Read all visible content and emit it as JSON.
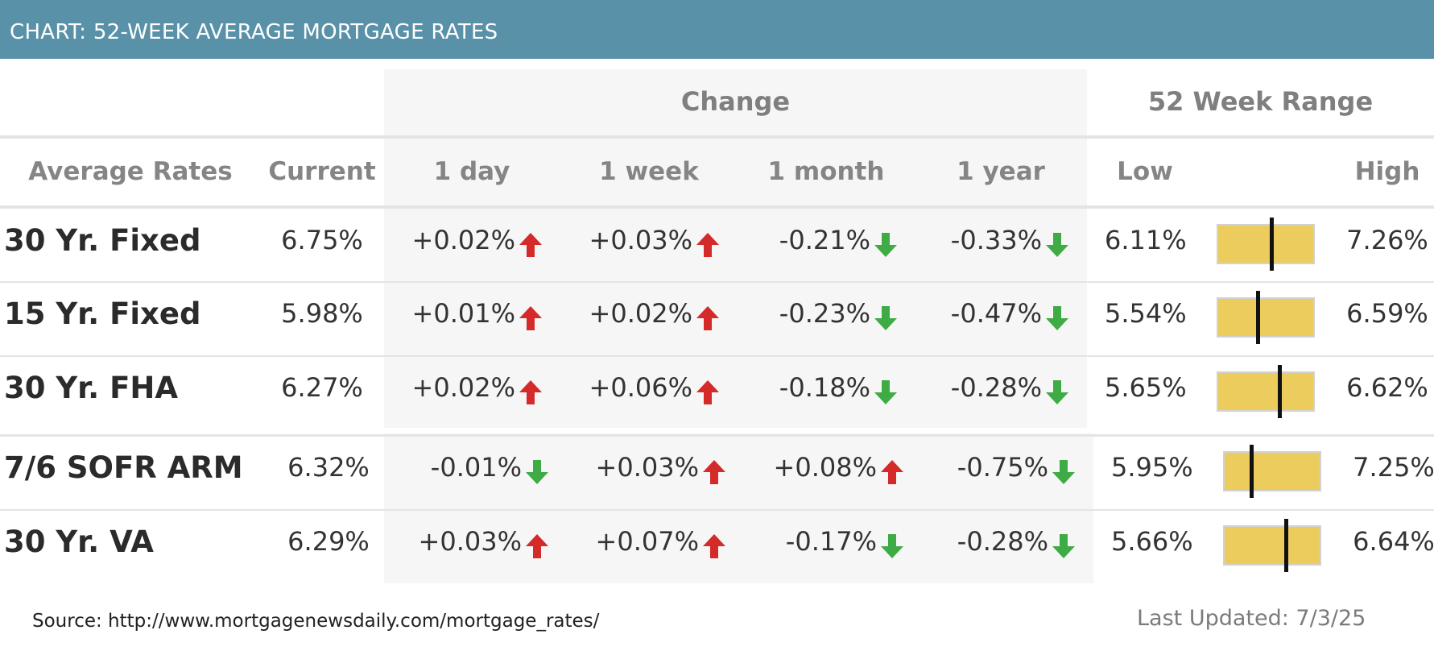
{
  "header": {
    "title": "CHART: 52-WEEK AVERAGE MORTGAGE RATES"
  },
  "groups": {
    "change": "Change",
    "range": "52 Week Range"
  },
  "columns": {
    "average_rates": "Average Rates",
    "current": "Current",
    "day": "1 day",
    "week": "1 week",
    "month": "1 month",
    "year": "1 year",
    "low": "Low",
    "high": "High"
  },
  "colors": {
    "up": "#d42a2a",
    "down": "#3eab45",
    "bar": "#eccc5c",
    "header": "#5991a8"
  },
  "chart_data": {
    "type": "table",
    "title": "CHART: 52-WEEK AVERAGE MORTGAGE RATES",
    "rows": [
      {
        "label": "30 Yr. Fixed",
        "current": "6.75%",
        "changes": [
          {
            "text": "+0.02%",
            "dir": "up"
          },
          {
            "text": "+0.03%",
            "dir": "up"
          },
          {
            "text": "-0.21%",
            "dir": "down"
          },
          {
            "text": "-0.33%",
            "dir": "down"
          }
        ],
        "low": "6.11%",
        "high": "7.26%",
        "low_value": 6.11,
        "high_value": 7.26,
        "current_value": 6.75
      },
      {
        "label": "15 Yr. Fixed",
        "current": "5.98%",
        "changes": [
          {
            "text": "+0.01%",
            "dir": "up"
          },
          {
            "text": "+0.02%",
            "dir": "up"
          },
          {
            "text": "-0.23%",
            "dir": "down"
          },
          {
            "text": "-0.47%",
            "dir": "down"
          }
        ],
        "low": "5.54%",
        "high": "6.59%",
        "low_value": 5.54,
        "high_value": 6.59,
        "current_value": 5.98
      },
      {
        "label": "30 Yr. FHA",
        "current": "6.27%",
        "changes": [
          {
            "text": "+0.02%",
            "dir": "up"
          },
          {
            "text": "+0.06%",
            "dir": "up"
          },
          {
            "text": "-0.18%",
            "dir": "down"
          },
          {
            "text": "-0.28%",
            "dir": "down"
          }
        ],
        "low": "5.65%",
        "high": "6.62%",
        "low_value": 5.65,
        "high_value": 6.62,
        "current_value": 6.27
      },
      {
        "label": "7/6 SOFR ARM",
        "current": "6.32%",
        "changes": [
          {
            "text": "-0.01%",
            "dir": "down"
          },
          {
            "text": "+0.03%",
            "dir": "up"
          },
          {
            "text": "+0.08%",
            "dir": "up"
          },
          {
            "text": "-0.75%",
            "dir": "down"
          }
        ],
        "low": "5.95%",
        "high": "7.25%",
        "low_value": 5.95,
        "high_value": 7.25,
        "current_value": 6.32
      },
      {
        "label": "30 Yr. VA",
        "current": "6.29%",
        "changes": [
          {
            "text": "+0.03%",
            "dir": "up"
          },
          {
            "text": "+0.07%",
            "dir": "up"
          },
          {
            "text": "-0.17%",
            "dir": "down"
          },
          {
            "text": "-0.28%",
            "dir": "down"
          }
        ],
        "low": "5.66%",
        "high": "6.64%",
        "low_value": 5.66,
        "high_value": 6.64,
        "current_value": 6.29
      }
    ]
  },
  "footer": {
    "source": "Source: http://www.mortgagenewsdaily.com/mortgage_rates/",
    "updated": "Last Updated: 7/3/25"
  }
}
